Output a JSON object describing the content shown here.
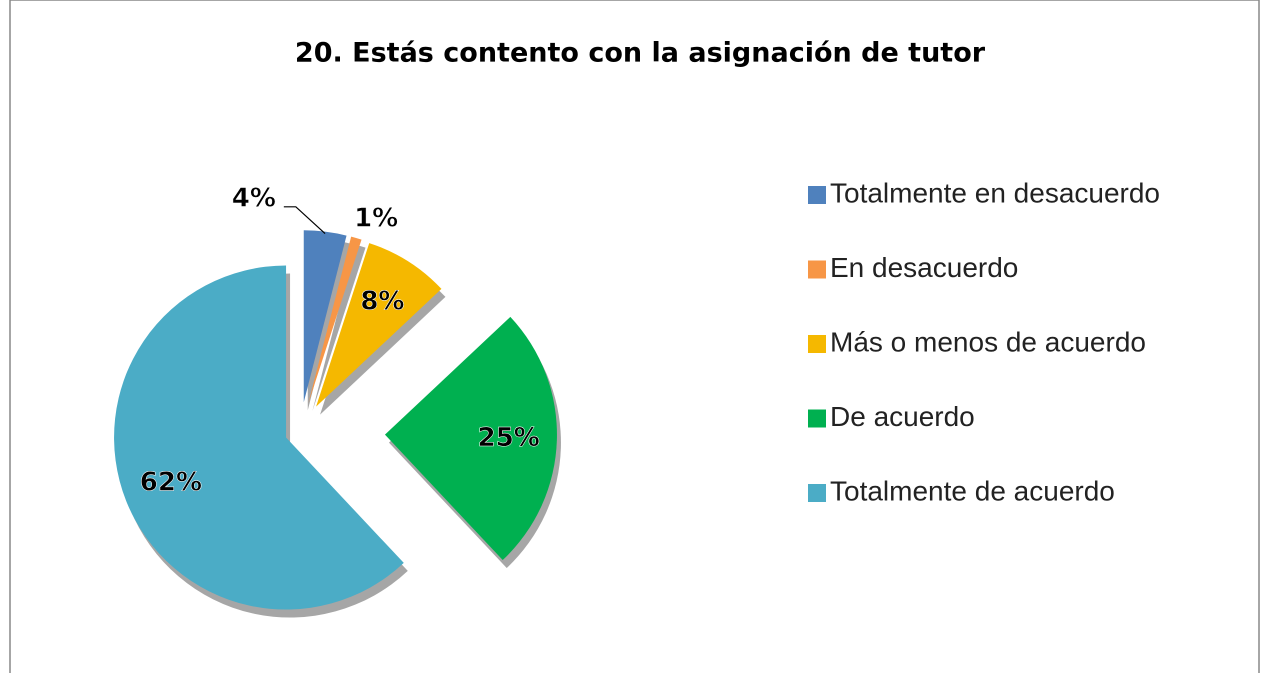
{
  "chart_data": {
    "type": "pie",
    "title": "20. Estás contento con la asignación de tutor",
    "categories": [
      "Totalmente en desacuerdo",
      "En desacuerdo",
      "Más o menos de acuerdo",
      "De acuerdo",
      "Totalmente de acuerdo"
    ],
    "values": [
      4,
      1,
      8,
      25,
      62
    ],
    "value_labels": [
      "4%",
      "1%",
      "8%",
      "25%",
      "62%"
    ],
    "colors": [
      "#4f81bd",
      "#f79646",
      "#f5b800",
      "#00b050",
      "#4bacc6"
    ],
    "legend": "right"
  }
}
